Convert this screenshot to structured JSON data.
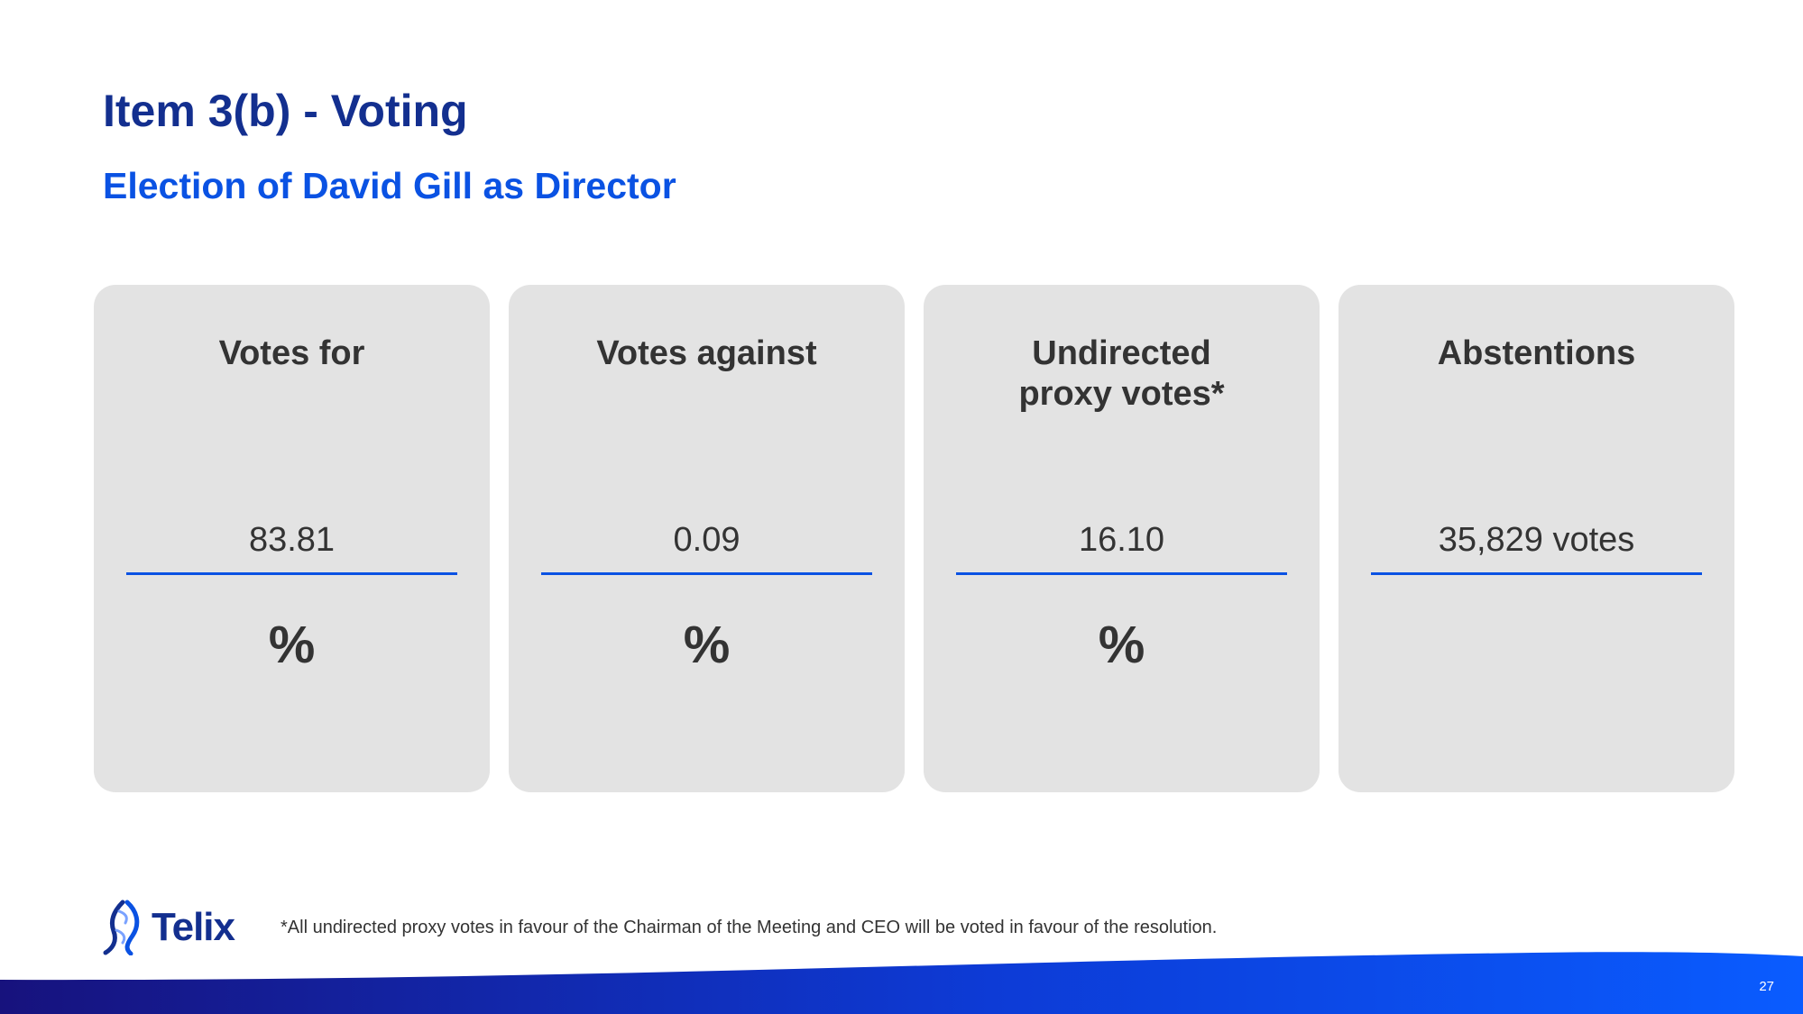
{
  "slide": {
    "title": "Item 3(b) - Voting",
    "subtitle": "Election of David Gill as Director",
    "page_number": "27"
  },
  "cards": [
    {
      "title_lines": [
        "Votes for"
      ],
      "value": "83.81",
      "unit": "%"
    },
    {
      "title_lines": [
        "Votes against"
      ],
      "value": "0.09",
      "unit": "%"
    },
    {
      "title_lines": [
        "Undirected",
        "proxy votes*"
      ],
      "value": "16.10",
      "unit": "%"
    },
    {
      "title_lines": [
        "Abstentions"
      ],
      "value": "35,829 votes",
      "unit": ""
    }
  ],
  "footer": {
    "logo_text": "Telix",
    "footnote": "*All undirected proxy votes in favour of the Chairman of the Meeting and CEO will be voted in favour of the resolution."
  },
  "colors": {
    "title": "#132f8f",
    "accent": "#0a52e3",
    "card_background": "#e3e3e3",
    "text": "#333333",
    "footer_gradient_start": "#17127d",
    "footer_gradient_end": "#0a5cff"
  }
}
